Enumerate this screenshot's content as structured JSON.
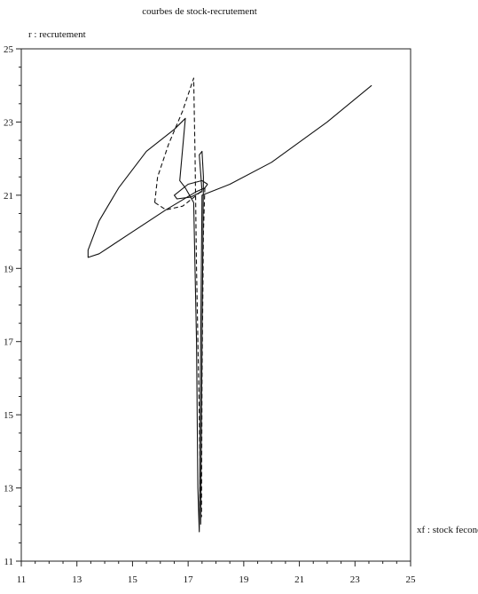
{
  "chart_data": {
    "type": "line",
    "title": "courbes de stock-recrutement",
    "xlabel": "xf : stock fecond",
    "ylabel": "r : recrutement",
    "xlim": [
      11,
      25
    ],
    "ylim": [
      11,
      25
    ],
    "x_ticks": [
      11,
      13,
      15,
      17,
      19,
      21,
      23,
      25
    ],
    "y_ticks": [
      11,
      13,
      15,
      17,
      19,
      21,
      23,
      25
    ],
    "x_tick_labels": [
      "11",
      "13",
      "15",
      "17",
      "19",
      "21",
      "23",
      "25"
    ],
    "y_tick_labels": [
      "11",
      "13",
      "15",
      "17",
      "19",
      "21",
      "23",
      "25"
    ],
    "grid": false,
    "legend": "none",
    "series": [
      {
        "style": "solid",
        "color": "#111111",
        "points": [
          [
            23.6,
            24.0
          ],
          [
            22.0,
            23.0
          ],
          [
            20.0,
            21.9
          ],
          [
            18.5,
            21.3
          ],
          [
            17.5,
            21.0
          ],
          [
            17.45,
            17.0
          ],
          [
            17.42,
            13.0
          ],
          [
            17.4,
            11.8
          ],
          [
            17.35,
            13.0
          ],
          [
            17.3,
            17.0
          ],
          [
            17.2,
            20.8
          ],
          [
            16.9,
            21.2
          ],
          [
            16.7,
            21.4
          ],
          [
            16.9,
            23.1
          ],
          [
            16.5,
            22.8
          ],
          [
            15.5,
            22.2
          ],
          [
            14.5,
            21.2
          ],
          [
            13.8,
            20.3
          ],
          [
            13.4,
            19.5
          ],
          [
            13.4,
            19.3
          ],
          [
            13.8,
            19.4
          ],
          [
            15.0,
            20.0
          ],
          [
            16.2,
            20.6
          ],
          [
            17.3,
            21.1
          ],
          [
            17.6,
            21.2
          ],
          [
            17.7,
            21.3
          ]
        ]
      },
      {
        "style": "solid",
        "color": "#111111",
        "points": [
          [
            17.7,
            21.3
          ],
          [
            17.5,
            21.4
          ],
          [
            17.0,
            21.3
          ],
          [
            16.5,
            21.0
          ],
          [
            16.6,
            20.9
          ],
          [
            17.1,
            20.95
          ],
          [
            17.5,
            21.1
          ]
        ]
      },
      {
        "style": "solid",
        "color": "#111111",
        "points": [
          [
            17.5,
            21.1
          ],
          [
            17.45,
            21.6
          ],
          [
            17.4,
            22.1
          ],
          [
            17.5,
            22.2
          ],
          [
            17.55,
            21.5
          ],
          [
            17.5,
            17.0
          ],
          [
            17.45,
            12.0
          ]
        ]
      },
      {
        "style": "dashed",
        "color": "#111111",
        "points": [
          [
            15.8,
            20.8
          ],
          [
            15.9,
            21.5
          ],
          [
            16.3,
            22.4
          ],
          [
            16.8,
            23.3
          ],
          [
            17.2,
            24.2
          ],
          [
            17.25,
            22.0
          ],
          [
            17.3,
            19.0
          ],
          [
            17.4,
            15.0
          ],
          [
            17.45,
            12.5
          ]
        ]
      },
      {
        "style": "dashed",
        "color": "#111111",
        "points": [
          [
            15.8,
            20.8
          ],
          [
            16.2,
            20.6
          ],
          [
            16.8,
            20.7
          ],
          [
            17.3,
            21.0
          ],
          [
            17.6,
            21.2
          ]
        ]
      },
      {
        "style": "dashed",
        "color": "#111111",
        "points": [
          [
            17.6,
            21.2
          ],
          [
            17.55,
            20.0
          ],
          [
            17.5,
            16.0
          ],
          [
            17.48,
            12.2
          ]
        ]
      }
    ]
  }
}
